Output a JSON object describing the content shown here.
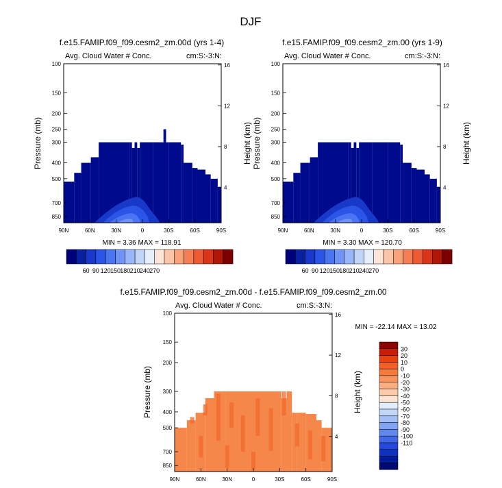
{
  "page": {
    "title": "DJF"
  },
  "panels": [
    {
      "title": "f.e15.FAMIP.f09_f09.cesm2_zm.00d (yrs 1-4)",
      "left_label": "Avg. Cloud Water # Conc.",
      "right_label": "cm:S:-3:N:",
      "stats": "MIN =   3.36   MAX = 118.91",
      "ylabel": "Pressure (mb)",
      "y2label": "Height (km)"
    },
    {
      "title": "f.e15.FAMIP.f09_f09.cesm2_zm.00 (yrs 1-9)",
      "left_label": "Avg. Cloud Water # Conc.",
      "right_label": "cm:S:-3:N:",
      "stats": "MIN =   3.30   MAX = 120.70",
      "ylabel": "Pressure (mb)",
      "y2label": "Height (km)"
    },
    {
      "title": "f.e15.FAMIP.f09_f09.cesm2_zm.00d - f.e15.FAMIP.f09_f09.cesm2_zm.00",
      "left_label": "Avg. Cloud Water # Conc.",
      "right_label": "cm:S:-3:N:",
      "stats": "MIN = -22.14   MAX =  13.02",
      "ylabel": "Pressure (mb)",
      "y2label": "Height (km)"
    }
  ],
  "chart_data": [
    {
      "type": "heatmap",
      "title": "f.e15.FAMIP.f09_f09.cesm2_zm.00d (yrs 1-4)",
      "xlabel": "",
      "ylabel": "Pressure (mb)",
      "y2label": "Height (km)",
      "x_ticks": [
        "90N",
        "60N",
        "30N",
        "0",
        "30S",
        "60S",
        "90S"
      ],
      "y_ticks": [
        "100",
        "150",
        "200",
        "250",
        "300",
        "400",
        "500",
        "700",
        "850"
      ],
      "y2_ticks": [
        "16",
        "12",
        "8",
        "4"
      ],
      "min": 3.36,
      "max": 118.91,
      "colorbar": {
        "labels": [
          "60",
          "90",
          "120",
          "150",
          "180",
          "210",
          "240",
          "270"
        ],
        "colors": [
          "#00007a",
          "#0a1ea0",
          "#1738c8",
          "#2a55e6",
          "#4a74f2",
          "#7094f5",
          "#98b6f7",
          "#c0d4f8",
          "#e6eefa",
          "#fde6d8",
          "#fbc4a8",
          "#f8a27c",
          "#f57f52",
          "#f05a32",
          "#dc3418",
          "#b01608",
          "#7a0000"
        ]
      }
    },
    {
      "type": "heatmap",
      "title": "f.e15.FAMIP.f09_f09.cesm2_zm.00 (yrs 1-9)",
      "xlabel": "",
      "ylabel": "Pressure (mb)",
      "y2label": "Height (km)",
      "x_ticks": [
        "90N",
        "60N",
        "30N",
        "0",
        "30S",
        "60S",
        "90S"
      ],
      "y_ticks": [
        "100",
        "150",
        "200",
        "250",
        "300",
        "400",
        "500",
        "700",
        "850"
      ],
      "y2_ticks": [
        "16",
        "12",
        "8",
        "4"
      ],
      "min": 3.3,
      "max": 120.7,
      "colorbar": {
        "labels": [
          "60",
          "90",
          "120",
          "150",
          "180",
          "210",
          "240",
          "270"
        ],
        "colors": [
          "#00007a",
          "#0a1ea0",
          "#1738c8",
          "#2a55e6",
          "#4a74f2",
          "#7094f5",
          "#98b6f7",
          "#c0d4f8",
          "#e6eefa",
          "#fde6d8",
          "#fbc4a8",
          "#f8a27c",
          "#f57f52",
          "#f05a32",
          "#dc3418",
          "#b01608",
          "#7a0000"
        ]
      }
    },
    {
      "type": "heatmap",
      "title": "f.e15.FAMIP.f09_f09.cesm2_zm.00d - f.e15.FAMIP.f09_f09.cesm2_zm.00",
      "xlabel": "",
      "ylabel": "Pressure (mb)",
      "y2label": "Height (km)",
      "x_ticks": [
        "90N",
        "60N",
        "30N",
        "0",
        "30S",
        "60S",
        "90S"
      ],
      "y_ticks": [
        "100",
        "150",
        "200",
        "300",
        "400",
        "500",
        "700",
        "850"
      ],
      "y2_ticks": [
        "16",
        "12",
        "8",
        "4"
      ],
      "min": -22.14,
      "max": 13.02,
      "colorbar": {
        "labels": [
          "30",
          "20",
          "10",
          "0",
          "-10",
          "-20",
          "-30",
          "-40",
          "-50",
          "-60",
          "-70",
          "-80",
          "-90",
          "-100",
          "-110"
        ],
        "colors": [
          "#8b0000",
          "#c81e08",
          "#e8400e",
          "#f5602a",
          "#f57a3e",
          "#f89460",
          "#faae82",
          "#fccaa8",
          "#fde4d2",
          "#e2ecfa",
          "#c2d6f8",
          "#a2bef6",
          "#82a4f2",
          "#6288ee",
          "#4068e8",
          "#2448dc",
          "#1030c0",
          "#001a9a",
          "#000a70"
        ]
      }
    }
  ]
}
